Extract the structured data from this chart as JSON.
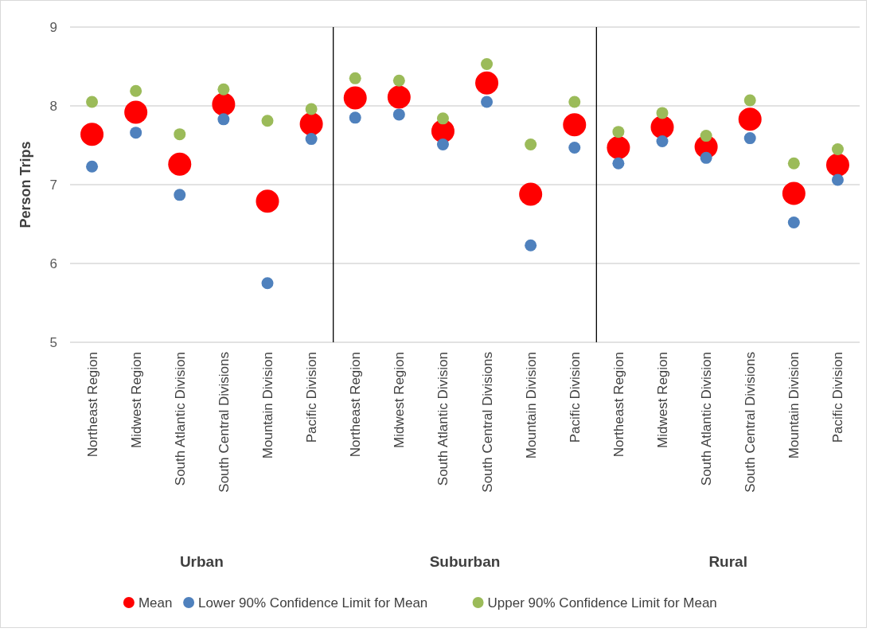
{
  "chart_data": {
    "type": "scatter",
    "ylabel": "Person Trips",
    "categories": [
      "Northeast Region",
      "Midwest Region",
      "South Atlantic Division",
      "South Central Divisions",
      "Mountain Division",
      "Pacific Division",
      "Northeast Region",
      "Midwest Region",
      "South Atlantic Division",
      "South Central Divisions",
      "Mountain Division",
      "Pacific Division",
      "Northeast Region",
      "Midwest Region",
      "South Atlantic Division",
      "South Central Divisions",
      "Mountain Division",
      "Pacific Division"
    ],
    "series": [
      {
        "name": "Mean",
        "color": "#ff0000",
        "values": [
          7.64,
          7.92,
          7.26,
          8.02,
          6.79,
          7.77,
          8.1,
          8.11,
          7.68,
          8.29,
          6.88,
          7.76,
          7.47,
          7.73,
          7.48,
          7.83,
          6.89,
          7.25
        ]
      },
      {
        "name": "Lower 90% Confidence Limit for Mean",
        "color": "#4f81bd",
        "values": [
          7.23,
          7.66,
          6.87,
          7.83,
          5.75,
          7.58,
          7.85,
          7.89,
          7.51,
          8.05,
          6.23,
          7.47,
          7.27,
          7.55,
          7.34,
          7.59,
          6.52,
          7.06
        ]
      },
      {
        "name": "Upper 90% Confidence Limit for Mean",
        "color": "#9bbb59",
        "values": [
          8.05,
          8.19,
          7.64,
          8.21,
          7.81,
          7.96,
          8.35,
          8.32,
          7.84,
          8.53,
          7.51,
          8.05,
          7.67,
          7.91,
          7.62,
          8.07,
          7.27,
          7.45
        ]
      }
    ],
    "ylim": [
      5,
      9
    ],
    "yticks": [
      5,
      6,
      7,
      8,
      9
    ],
    "grid": "y",
    "legend": "bottom",
    "marker": "circle",
    "annotations": [
      "Urban",
      "Suburban",
      "Rural"
    ]
  }
}
